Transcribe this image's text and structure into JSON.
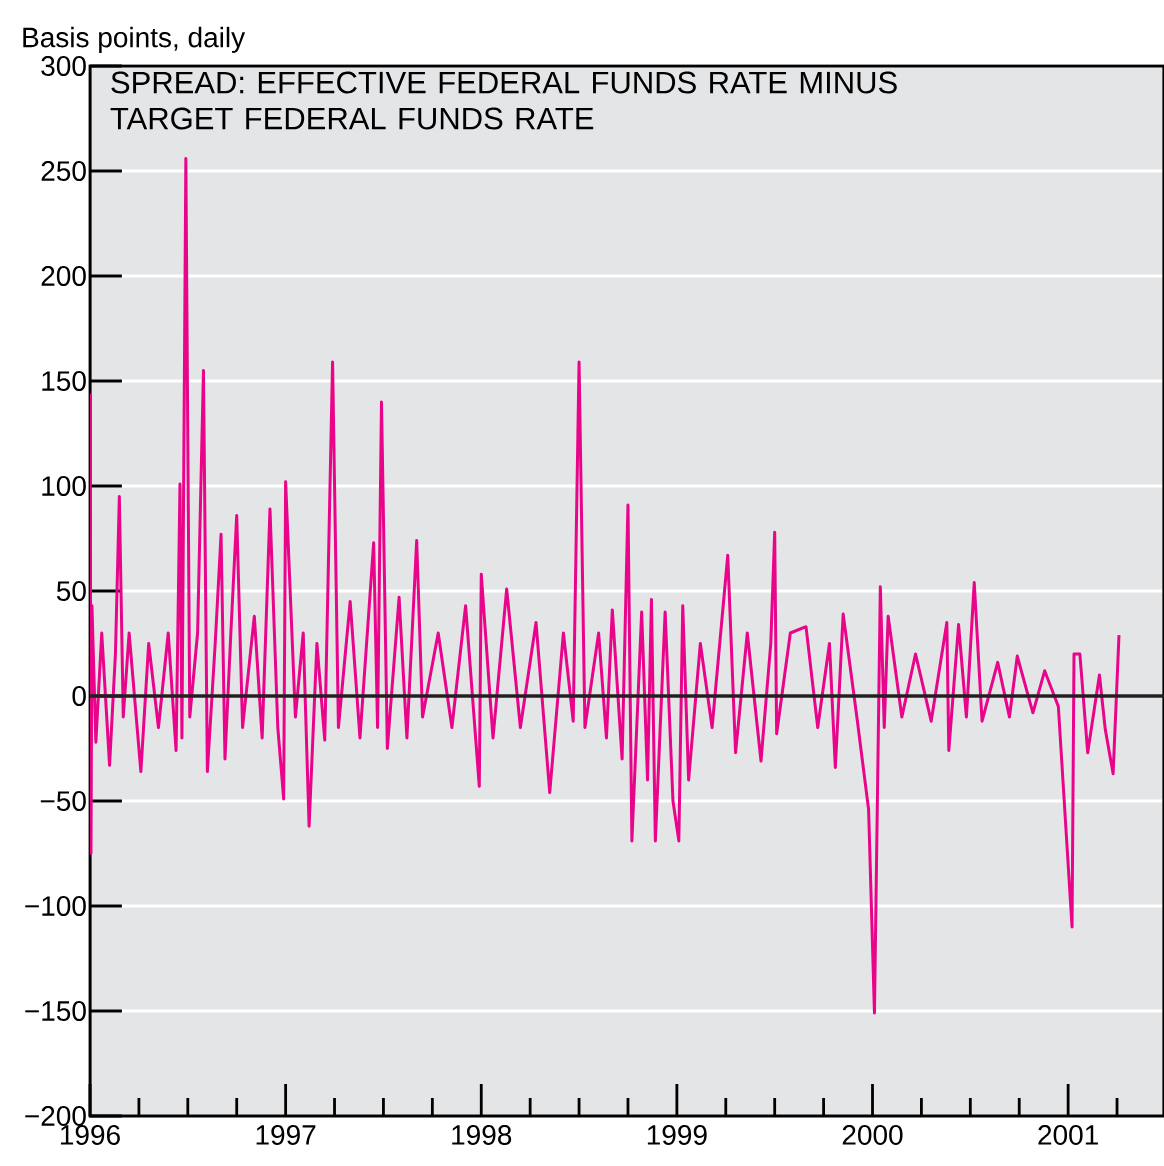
{
  "chart_data": {
    "type": "line",
    "title": "SPREAD:  EFFECTIVE FEDERAL FUNDS RATE MINUS TARGET FEDERAL FUNDS RATE",
    "ylabel": "Basis points, daily",
    "xlim": [
      1996,
      2001.49
    ],
    "xticks": [
      1996,
      {
        "value": 1996.25,
        "label": null
      },
      {
        "value": 1996.5,
        "label": null
      },
      {
        "value": 1996.75,
        "label": null
      },
      1997,
      {
        "value": 1997.25,
        "label": null
      },
      {
        "value": 1997.5,
        "label": null
      },
      {
        "value": 1997.75,
        "label": null
      },
      1998,
      {
        "value": 1998.25,
        "label": null
      },
      {
        "value": 1998.5,
        "label": null
      },
      {
        "value": 1998.75,
        "label": null
      },
      1999,
      {
        "value": 1999.25,
        "label": null
      },
      {
        "value": 1999.5,
        "label": null
      },
      {
        "value": 1999.75,
        "label": null
      },
      2000,
      {
        "value": 2000.25,
        "label": null
      },
      {
        "value": 2000.5,
        "label": null
      },
      {
        "value": 2000.75,
        "label": null
      },
      2001,
      {
        "value": 2001.25,
        "label": null
      }
    ],
    "ylim": [
      -200,
      300
    ],
    "yticks": [
      {
        "value": -200,
        "label": "−200"
      },
      {
        "value": -150,
        "label": "−150"
      },
      {
        "value": -100,
        "label": "−100"
      },
      {
        "value": -50,
        "label": "−50"
      },
      0,
      50,
      100,
      150,
      200,
      250,
      300
    ],
    "grid": "y",
    "marker": "none",
    "line_style": "solid",
    "ref_lines": [
      {
        "axis": "y",
        "value": 0,
        "color": "#231f20"
      }
    ],
    "series": [
      {
        "color": "#e8058a",
        "x": [
          1996.0,
          1996.005,
          1996.01,
          1996.03,
          1996.06,
          1996.1,
          1996.13,
          1996.15,
          1996.17,
          1996.2,
          1996.26,
          1996.3,
          1996.35,
          1996.4,
          1996.44,
          1996.46,
          1996.47,
          1996.49,
          1996.51,
          1996.55,
          1996.58,
          1996.6,
          1996.64,
          1996.67,
          1996.69,
          1996.72,
          1996.75,
          1996.78,
          1996.84,
          1996.88,
          1996.92,
          1996.96,
          1996.99,
          1997.0,
          1997.05,
          1997.09,
          1997.12,
          1997.16,
          1997.2,
          1997.24,
          1997.27,
          1997.33,
          1997.38,
          1997.45,
          1997.47,
          1997.49,
          1997.52,
          1997.58,
          1997.62,
          1997.67,
          1997.7,
          1997.78,
          1997.85,
          1997.92,
          1997.99,
          1998.0,
          1998.06,
          1998.13,
          1998.2,
          1998.28,
          1998.35,
          1998.42,
          1998.47,
          1998.5,
          1998.53,
          1998.6,
          1998.64,
          1998.67,
          1998.72,
          1998.75,
          1998.77,
          1998.82,
          1998.85,
          1998.87,
          1998.89,
          1998.94,
          1998.98,
          1999.01,
          1999.03,
          1999.06,
          1999.12,
          1999.18,
          1999.26,
          1999.3,
          1999.36,
          1999.43,
          1999.48,
          1999.5,
          1999.51,
          1999.58,
          1999.66,
          1999.72,
          1999.78,
          1999.81,
          1999.85,
          1999.92,
          1999.98,
          2000.01,
          2000.04,
          2000.06,
          2000.08,
          2000.15,
          2000.22,
          2000.3,
          2000.38,
          2000.39,
          2000.44,
          2000.48,
          2000.52,
          2000.56,
          2000.64,
          2000.7,
          2000.74,
          2000.82,
          2000.88,
          2000.95,
          2001.02,
          2001.03,
          2001.06,
          2001.1,
          2001.16,
          2001.19,
          2001.23,
          2001.26
        ],
        "values": [
          144,
          -75,
          43,
          -22,
          30,
          -33,
          20,
          95,
          -10,
          30,
          -36,
          25,
          -15,
          30,
          -26,
          101,
          -20,
          256,
          -10,
          30,
          155,
          -36,
          25,
          77,
          -30,
          30,
          86,
          -15,
          38,
          -20,
          89,
          -15,
          -49,
          102,
          -10,
          30,
          -62,
          25,
          -21,
          159,
          -15,
          45,
          -20,
          73,
          -15,
          140,
          -25,
          47,
          -20,
          74,
          -10,
          30,
          -15,
          43,
          -43,
          58,
          -20,
          51,
          -15,
          35,
          -46,
          30,
          -12,
          159,
          -15,
          30,
          -20,
          41,
          -30,
          91,
          -69,
          40,
          -40,
          46,
          -69,
          40,
          -50,
          -69,
          43,
          -40,
          25,
          -15,
          67,
          -27,
          30,
          -31,
          25,
          78,
          -18,
          30,
          33,
          -15,
          25,
          -34,
          39,
          -10,
          -54,
          -151,
          52,
          -15,
          38,
          -10,
          20,
          -12,
          35,
          -26,
          34,
          -10,
          54,
          -12,
          16,
          -10,
          19,
          -8,
          12,
          -5,
          -110,
          20,
          20,
          -27,
          10,
          -16,
          -37,
          29
        ]
      }
    ]
  }
}
